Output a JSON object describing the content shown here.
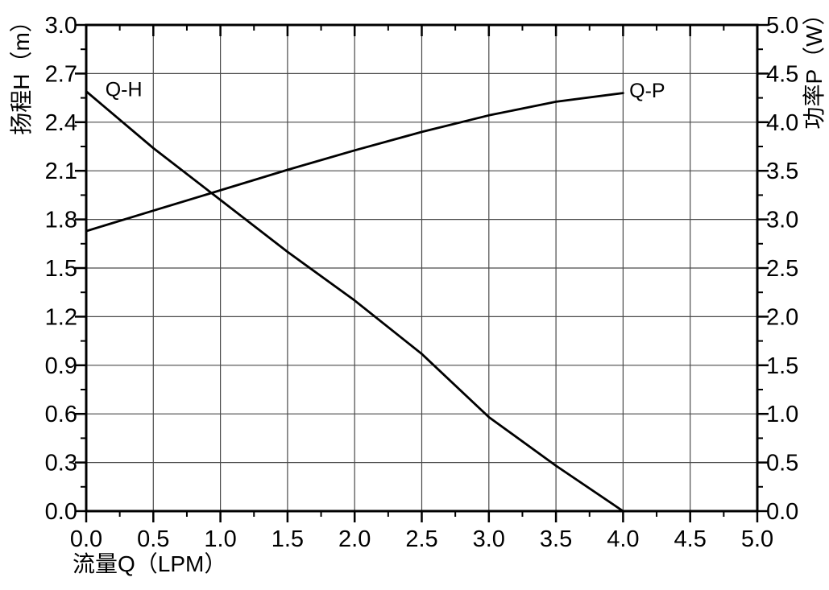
{
  "chart_data": {
    "type": "line",
    "title": "",
    "x": [
      0.0,
      0.5,
      1.0,
      1.5,
      2.0,
      2.5,
      3.0,
      3.5,
      4.0
    ],
    "series": [
      {
        "name": "Q-H",
        "axis": "left",
        "values": [
          2.59,
          2.24,
          1.92,
          1.6,
          1.3,
          0.97,
          0.58,
          0.28,
          0.0
        ]
      },
      {
        "name": "Q-P",
        "axis": "right",
        "values": [
          2.88,
          3.09,
          3.3,
          3.51,
          3.71,
          3.9,
          4.07,
          4.21,
          4.3
        ]
      }
    ],
    "x_axis": {
      "label": "流量Q（LPM）",
      "min": 0,
      "max": 5,
      "major_step": 0.5,
      "minor_step": 0.25,
      "tick_decimals": 1
    },
    "y_left": {
      "label": "扬程H（m）",
      "min": 0,
      "max": 3,
      "major_step": 0.3,
      "minor_step": 0.15,
      "tick_decimals": 1
    },
    "y_right": {
      "label": "功率P（W）",
      "min": 0,
      "max": 5,
      "major_step": 0.5,
      "minor_step": 0.25,
      "tick_decimals": 1
    },
    "grid": true,
    "legend_position": "none",
    "annotations": [
      {
        "text": "Q-H",
        "x": 0.28,
        "y": 2.6,
        "axis": "left"
      },
      {
        "text": "Q-P",
        "x": 4.18,
        "y": 4.32,
        "axis": "right"
      }
    ],
    "colors": {
      "line": "#000000",
      "grid": "#4a4a4a",
      "axis": "#000000",
      "text": "#000000",
      "background": "#ffffff"
    }
  }
}
